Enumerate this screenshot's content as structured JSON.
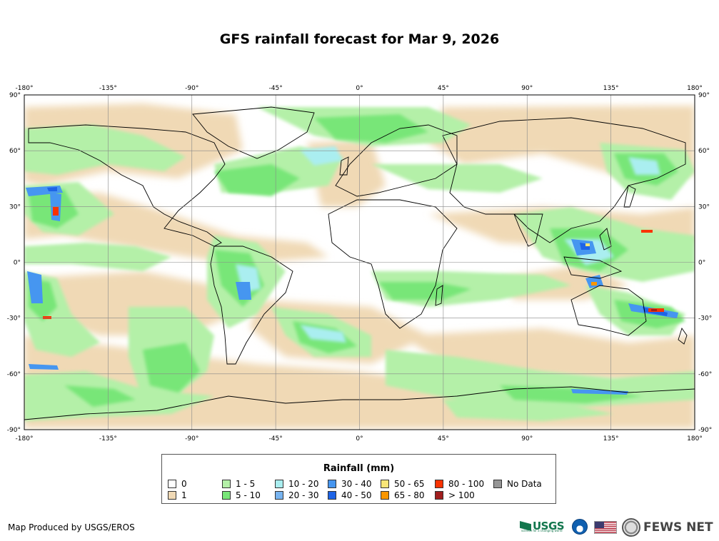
{
  "title": "GFS rainfall forecast for Mar 9, 2026",
  "axes": {
    "lon_labels": [
      "-180°",
      "-135°",
      "-90°",
      "-45°",
      "0°",
      "45°",
      "90°",
      "135°",
      "180°"
    ],
    "lat_labels": [
      "90°",
      "60°",
      "30°",
      "0°",
      "-30°",
      "-60°",
      "-90°"
    ]
  },
  "legend": {
    "title": "Rainfall (mm)",
    "items": [
      {
        "label": "0",
        "color": "#ffffff"
      },
      {
        "label": "1",
        "color": "#f0d9b5"
      },
      {
        "label": "1 - 5",
        "color": "#b4f0a8"
      },
      {
        "label": "5 - 10",
        "color": "#78e678"
      },
      {
        "label": "10 - 20",
        "color": "#aaeef0"
      },
      {
        "label": "20 - 30",
        "color": "#78b4f0"
      },
      {
        "label": "30 - 40",
        "color": "#4696f0"
      },
      {
        "label": "40 - 50",
        "color": "#1e64e6"
      },
      {
        "label": "50 - 65",
        "color": "#fae678"
      },
      {
        "label": "65 - 80",
        "color": "#fa9600"
      },
      {
        "label": "80 - 100",
        "color": "#fa3200"
      },
      {
        "label": "> 100",
        "color": "#a01e1e"
      },
      {
        "label": "No Data",
        "color": "#969696"
      }
    ]
  },
  "credit": "Map Produced by USGS/EROS",
  "logos": {
    "usgs": "USGS",
    "usgs_tagline": "science for a changing world",
    "noaa_icon": "noaa-logo-icon",
    "flag_icon": "us-flag-icon",
    "seal_icon": "state-dept-seal-icon",
    "fews": "FEWS NET"
  }
}
